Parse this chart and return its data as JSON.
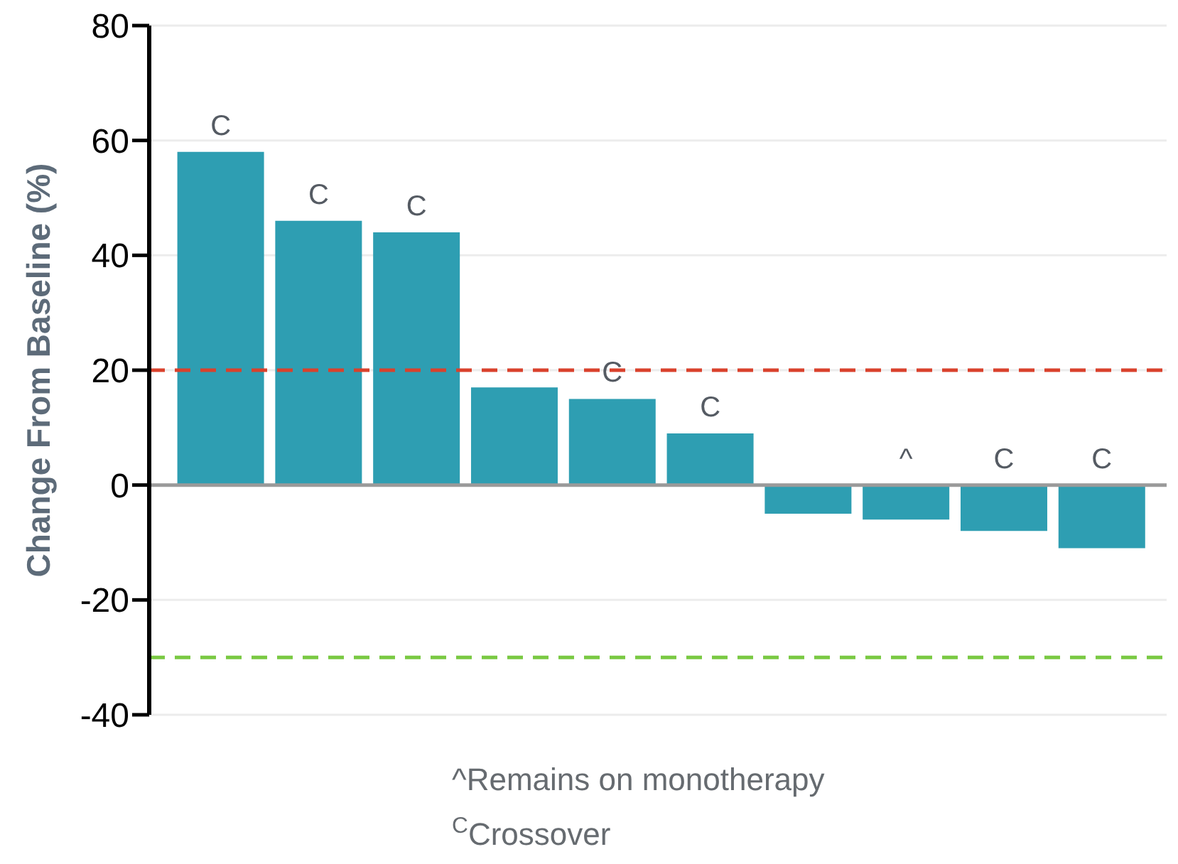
{
  "chart_data": {
    "type": "bar",
    "ylabel": "Change From Baseline (%)",
    "categories": [
      null,
      null,
      null,
      null,
      null,
      null,
      null,
      null,
      null,
      null
    ],
    "values": [
      58,
      46,
      44,
      17,
      15,
      9,
      -5,
      -6,
      -8,
      -11
    ],
    "color": "#2e9eb2",
    "value_labels": [
      "C",
      "C",
      "C",
      null,
      "C",
      "C",
      null,
      "^",
      "C",
      "C"
    ],
    "ylim": [
      -40,
      80
    ],
    "yticks": [
      -40,
      -20,
      0,
      20,
      40,
      60,
      80
    ],
    "grid": "y",
    "tick_labels": "y",
    "ref_lines": [
      {
        "axis": "y",
        "value": 20,
        "color": "#d9412c",
        "line_style": "dashed"
      },
      {
        "axis": "y",
        "value": -30,
        "color": "#7ac943",
        "line_style": "dashed"
      },
      {
        "axis": "y",
        "value": 0,
        "color": "#9a9a9a",
        "line_style": "solid"
      }
    ],
    "annotations": [
      "^Remains on monotherapy",
      "$^{C}$Crossover"
    ]
  }
}
